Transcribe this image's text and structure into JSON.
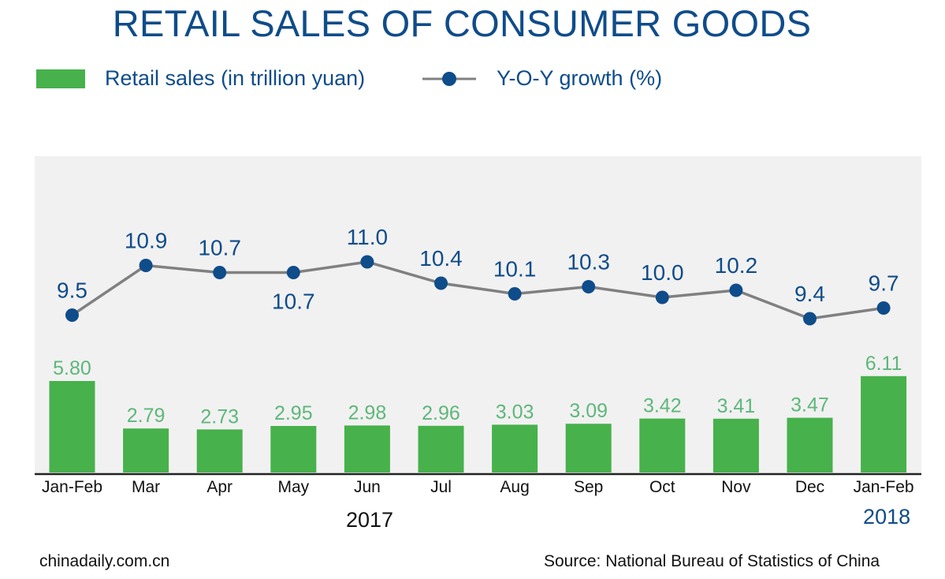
{
  "title": "RETAIL SALES OF CONSUMER GOODS",
  "legend": {
    "bars_label": "Retail sales (in trillion yuan)",
    "line_label": "Y-O-Y growth (%)"
  },
  "colors": {
    "title": "#0f4c8a",
    "bar": "#47b14b",
    "bar_label": "#5db77a",
    "line": "#808080",
    "marker": "#0f4c8a",
    "line_label": "#0f4c8a",
    "plot_background": "#f1f1f1"
  },
  "footer": {
    "left": "chinadaily.com.cn",
    "right": "Source: National Bureau of Statistics of China"
  },
  "chart_data": {
    "type": "bar",
    "categories": [
      "Jan-Feb",
      "Mar",
      "Apr",
      "May",
      "Jun",
      "Jul",
      "Aug",
      "Sep",
      "Oct",
      "Nov",
      "Dec",
      "Jan-Feb"
    ],
    "year_labels": [
      "2017",
      "2018"
    ],
    "series": [
      {
        "name": "Retail sales (in trillion yuan)",
        "type": "bar",
        "values": [
          5.8,
          2.79,
          2.73,
          2.95,
          2.98,
          2.96,
          3.03,
          3.09,
          3.42,
          3.41,
          3.47,
          6.11
        ],
        "labels": [
          "5.80",
          "2.79",
          "2.73",
          "2.95",
          "2.98",
          "2.96",
          "3.03",
          "3.09",
          "3.42",
          "3.41",
          "3.47",
          "6.11"
        ]
      },
      {
        "name": "Y-O-Y growth (%)",
        "type": "line",
        "values": [
          9.5,
          10.9,
          10.7,
          10.7,
          11.0,
          10.4,
          10.1,
          10.3,
          10.0,
          10.2,
          9.4,
          9.7
        ],
        "labels": [
          "9.5",
          "10.9",
          "10.7",
          "10.7",
          "11.0",
          "10.4",
          "10.1",
          "10.3",
          "10.0",
          "10.2",
          "9.4",
          "9.7"
        ]
      }
    ],
    "grid": false,
    "legend_position": "top-left"
  }
}
